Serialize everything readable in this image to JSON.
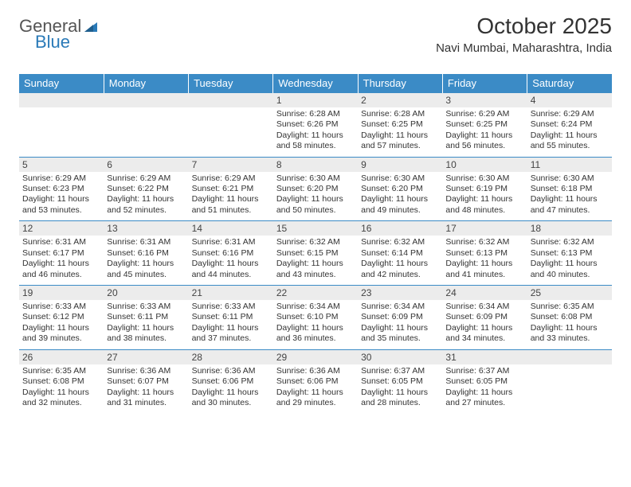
{
  "brand": {
    "text1": "General",
    "text2": "Blue",
    "text1_color": "#555555",
    "text2_color": "#2a7ab8"
  },
  "title": "October 2025",
  "location": "Navi Mumbai, Maharashtra, India",
  "colors": {
    "header_bg": "#3b8bc6",
    "band_bg": "#ececec",
    "rule": "#3b8bc6"
  },
  "dow": [
    "Sunday",
    "Monday",
    "Tuesday",
    "Wednesday",
    "Thursday",
    "Friday",
    "Saturday"
  ],
  "weeks": [
    [
      null,
      null,
      null,
      {
        "n": "1",
        "sr": "6:28 AM",
        "ss": "6:26 PM",
        "dl": "11 hours and 58 minutes."
      },
      {
        "n": "2",
        "sr": "6:28 AM",
        "ss": "6:25 PM",
        "dl": "11 hours and 57 minutes."
      },
      {
        "n": "3",
        "sr": "6:29 AM",
        "ss": "6:25 PM",
        "dl": "11 hours and 56 minutes."
      },
      {
        "n": "4",
        "sr": "6:29 AM",
        "ss": "6:24 PM",
        "dl": "11 hours and 55 minutes."
      }
    ],
    [
      {
        "n": "5",
        "sr": "6:29 AM",
        "ss": "6:23 PM",
        "dl": "11 hours and 53 minutes."
      },
      {
        "n": "6",
        "sr": "6:29 AM",
        "ss": "6:22 PM",
        "dl": "11 hours and 52 minutes."
      },
      {
        "n": "7",
        "sr": "6:29 AM",
        "ss": "6:21 PM",
        "dl": "11 hours and 51 minutes."
      },
      {
        "n": "8",
        "sr": "6:30 AM",
        "ss": "6:20 PM",
        "dl": "11 hours and 50 minutes."
      },
      {
        "n": "9",
        "sr": "6:30 AM",
        "ss": "6:20 PM",
        "dl": "11 hours and 49 minutes."
      },
      {
        "n": "10",
        "sr": "6:30 AM",
        "ss": "6:19 PM",
        "dl": "11 hours and 48 minutes."
      },
      {
        "n": "11",
        "sr": "6:30 AM",
        "ss": "6:18 PM",
        "dl": "11 hours and 47 minutes."
      }
    ],
    [
      {
        "n": "12",
        "sr": "6:31 AM",
        "ss": "6:17 PM",
        "dl": "11 hours and 46 minutes."
      },
      {
        "n": "13",
        "sr": "6:31 AM",
        "ss": "6:16 PM",
        "dl": "11 hours and 45 minutes."
      },
      {
        "n": "14",
        "sr": "6:31 AM",
        "ss": "6:16 PM",
        "dl": "11 hours and 44 minutes."
      },
      {
        "n": "15",
        "sr": "6:32 AM",
        "ss": "6:15 PM",
        "dl": "11 hours and 43 minutes."
      },
      {
        "n": "16",
        "sr": "6:32 AM",
        "ss": "6:14 PM",
        "dl": "11 hours and 42 minutes."
      },
      {
        "n": "17",
        "sr": "6:32 AM",
        "ss": "6:13 PM",
        "dl": "11 hours and 41 minutes."
      },
      {
        "n": "18",
        "sr": "6:32 AM",
        "ss": "6:13 PM",
        "dl": "11 hours and 40 minutes."
      }
    ],
    [
      {
        "n": "19",
        "sr": "6:33 AM",
        "ss": "6:12 PM",
        "dl": "11 hours and 39 minutes."
      },
      {
        "n": "20",
        "sr": "6:33 AM",
        "ss": "6:11 PM",
        "dl": "11 hours and 38 minutes."
      },
      {
        "n": "21",
        "sr": "6:33 AM",
        "ss": "6:11 PM",
        "dl": "11 hours and 37 minutes."
      },
      {
        "n": "22",
        "sr": "6:34 AM",
        "ss": "6:10 PM",
        "dl": "11 hours and 36 minutes."
      },
      {
        "n": "23",
        "sr": "6:34 AM",
        "ss": "6:09 PM",
        "dl": "11 hours and 35 minutes."
      },
      {
        "n": "24",
        "sr": "6:34 AM",
        "ss": "6:09 PM",
        "dl": "11 hours and 34 minutes."
      },
      {
        "n": "25",
        "sr": "6:35 AM",
        "ss": "6:08 PM",
        "dl": "11 hours and 33 minutes."
      }
    ],
    [
      {
        "n": "26",
        "sr": "6:35 AM",
        "ss": "6:08 PM",
        "dl": "11 hours and 32 minutes."
      },
      {
        "n": "27",
        "sr": "6:36 AM",
        "ss": "6:07 PM",
        "dl": "11 hours and 31 minutes."
      },
      {
        "n": "28",
        "sr": "6:36 AM",
        "ss": "6:06 PM",
        "dl": "11 hours and 30 minutes."
      },
      {
        "n": "29",
        "sr": "6:36 AM",
        "ss": "6:06 PM",
        "dl": "11 hours and 29 minutes."
      },
      {
        "n": "30",
        "sr": "6:37 AM",
        "ss": "6:05 PM",
        "dl": "11 hours and 28 minutes."
      },
      {
        "n": "31",
        "sr": "6:37 AM",
        "ss": "6:05 PM",
        "dl": "11 hours and 27 minutes."
      },
      null
    ]
  ],
  "labels": {
    "sunrise": "Sunrise: ",
    "sunset": "Sunset: ",
    "daylight": "Daylight: "
  }
}
